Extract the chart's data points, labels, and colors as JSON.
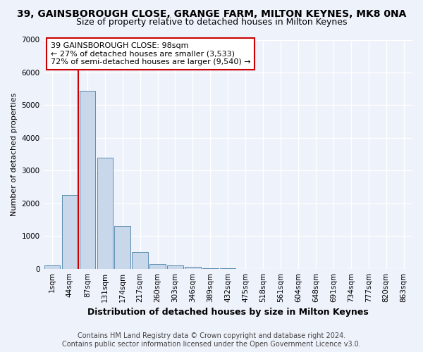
{
  "title": "39, GAINSBOROUGH CLOSE, GRANGE FARM, MILTON KEYNES, MK8 0NA",
  "subtitle": "Size of property relative to detached houses in Milton Keynes",
  "xlabel": "Distribution of detached houses by size in Milton Keynes",
  "ylabel": "Number of detached properties",
  "footer_line1": "Contains HM Land Registry data © Crown copyright and database right 2024.",
  "footer_line2": "Contains public sector information licensed under the Open Government Licence v3.0.",
  "bar_labels": [
    "1sqm",
    "44sqm",
    "87sqm",
    "131sqm",
    "174sqm",
    "217sqm",
    "260sqm",
    "303sqm",
    "346sqm",
    "389sqm",
    "432sqm",
    "475sqm",
    "518sqm",
    "561sqm",
    "604sqm",
    "648sqm",
    "691sqm",
    "734sqm",
    "777sqm",
    "820sqm",
    "863sqm"
  ],
  "bar_values": [
    100,
    2250,
    5450,
    3400,
    1300,
    500,
    150,
    100,
    50,
    20,
    5,
    2,
    0,
    0,
    0,
    0,
    0,
    0,
    0,
    0,
    0
  ],
  "bar_color": "#c8d8ea",
  "bar_edge_color": "#5b8db0",
  "background_color": "#eef2fb",
  "grid_color": "#ffffff",
  "vline_color": "#cc0000",
  "annotation_text": "39 GAINSBOROUGH CLOSE: 98sqm\n← 27% of detached houses are smaller (3,533)\n72% of semi-detached houses are larger (9,540) →",
  "annotation_box_facecolor": "#ffffff",
  "annotation_box_edgecolor": "#cc0000",
  "ylim": [
    0,
    7000
  ],
  "yticks": [
    0,
    1000,
    2000,
    3000,
    4000,
    5000,
    6000,
    7000
  ],
  "title_fontsize": 10,
  "subtitle_fontsize": 9,
  "xlabel_fontsize": 9,
  "ylabel_fontsize": 8,
  "tick_fontsize": 7.5,
  "footer_fontsize": 7,
  "annot_fontsize": 8
}
